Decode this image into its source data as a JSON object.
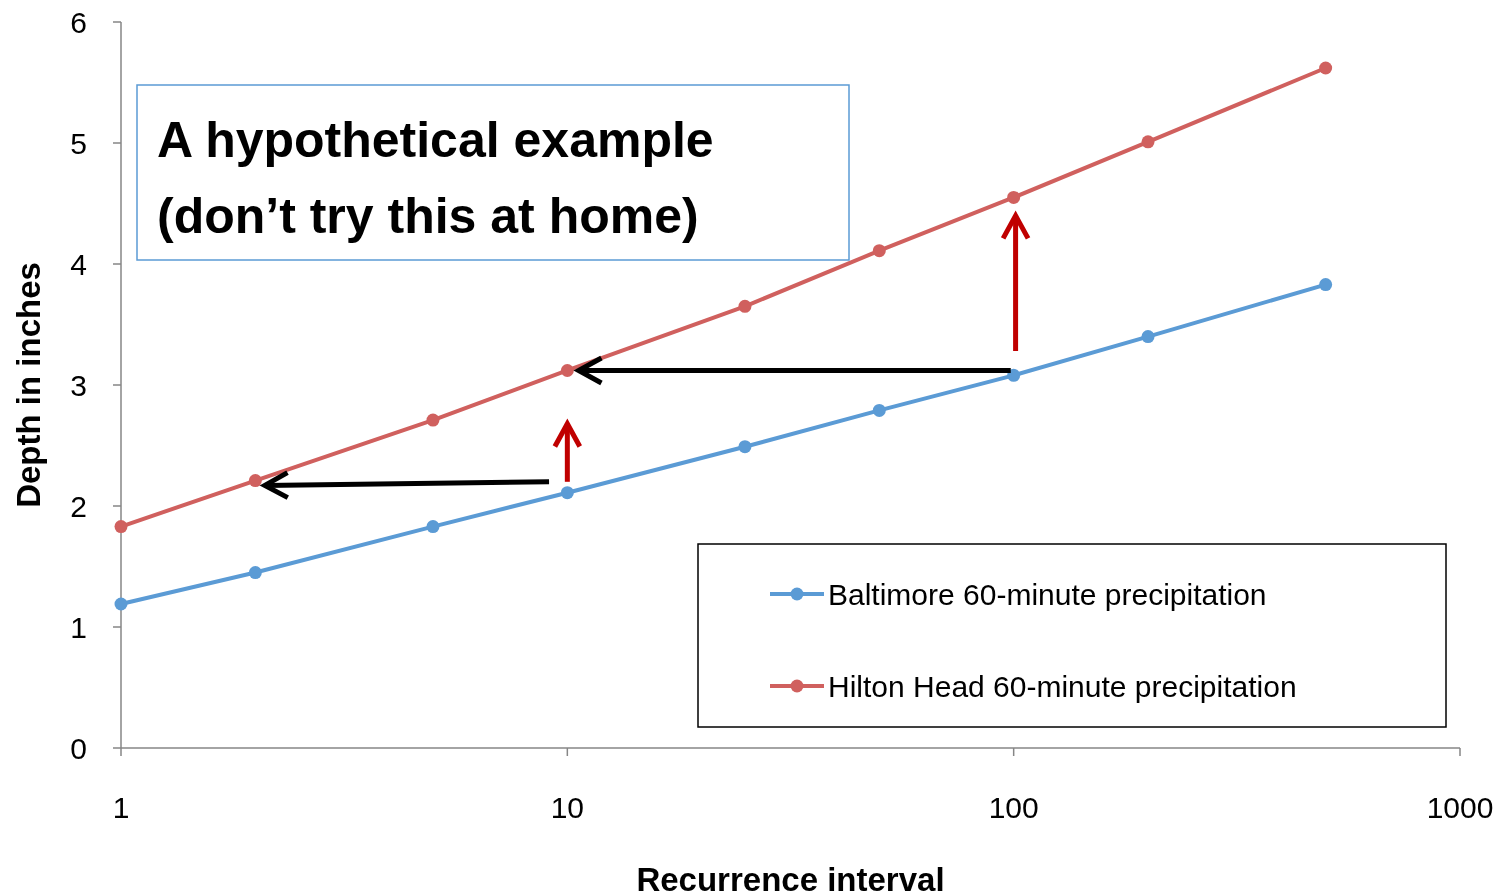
{
  "chart_data": {
    "type": "line",
    "xlabel": "Recurrence interval",
    "ylabel": "Depth in inches",
    "log": "x",
    "x": [
      1,
      2,
      5,
      10,
      25,
      50,
      100,
      200,
      500
    ],
    "xlim": [
      1,
      1000
    ],
    "xticks": [
      1,
      10,
      100,
      1000
    ],
    "ylim": [
      0,
      6
    ],
    "yticks": [
      0,
      1,
      2,
      3,
      4,
      5,
      6
    ],
    "series": [
      {
        "name": "Baltimore 60-minute precipitation",
        "color": "#5b9bd5",
        "values": [
          1.19,
          1.45,
          1.83,
          2.11,
          2.49,
          2.79,
          3.08,
          3.4,
          3.83
        ]
      },
      {
        "name": "Hilton Head 60-minute precipitation",
        "color": "#d0605e",
        "values": [
          1.83,
          2.21,
          2.71,
          3.12,
          3.65,
          4.11,
          4.55,
          5.01,
          5.62
        ]
      }
    ],
    "marker": "circle",
    "line_style": "solid",
    "grid": false,
    "legend": "bottom right",
    "annotations": [
      "A hypothetical example\n(don’t try this at home)"
    ]
  }
}
